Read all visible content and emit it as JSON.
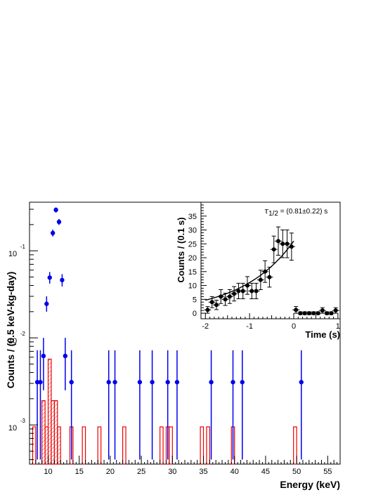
{
  "chart_data": [
    {
      "type": "scatter",
      "xlabel": "Energy (keV)",
      "ylabel": "Counts / (0.5 keV-kg-day)",
      "xlim": [
        7,
        57
      ],
      "ylog": true,
      "x_ticks": [
        {
          "v": 10,
          "label": "10"
        },
        {
          "v": 15,
          "label": "15"
        },
        {
          "v": 20,
          "label": "20"
        },
        {
          "v": 25,
          "label": "25"
        },
        {
          "v": 30,
          "label": "30"
        },
        {
          "v": 35,
          "label": "35"
        },
        {
          "v": 40,
          "label": "40"
        },
        {
          "v": 45,
          "label": "45"
        },
        {
          "v": 50,
          "label": "50"
        },
        {
          "v": 55,
          "label": "55"
        }
      ],
      "y_ticks": [
        {
          "exp": "-3",
          "base": "10"
        },
        {
          "exp": "-2",
          "base": "10"
        },
        {
          "exp": "-1",
          "base": "10"
        }
      ],
      "series": [
        {
          "kind": "points",
          "color": "#0000ee",
          "points": [
            {
              "x": 8.25,
              "y": 0.0031,
              "lo": 0.0004,
              "hi": 0.0072
            },
            {
              "x": 8.75,
              "y": 0.0031,
              "lo": 0.0004,
              "hi": 0.0072
            },
            {
              "x": 9.25,
              "y": 0.0062,
              "lo": 0.0025,
              "hi": 0.01
            },
            {
              "x": 9.75,
              "y": 0.0246,
              "lo": 0.02,
              "hi": 0.03
            },
            {
              "x": 10.25,
              "y": 0.0492,
              "lo": 0.042,
              "hi": 0.057
            },
            {
              "x": 10.75,
              "y": 0.16,
              "lo": 0.146,
              "hi": 0.175
            },
            {
              "x": 11.25,
              "y": 0.295,
              "lo": 0.275,
              "hi": 0.315
            },
            {
              "x": 11.75,
              "y": 0.215,
              "lo": 0.198,
              "hi": 0.232
            },
            {
              "x": 12.25,
              "y": 0.0461,
              "lo": 0.039,
              "hi": 0.054
            },
            {
              "x": 12.75,
              "y": 0.0062,
              "lo": 0.0025,
              "hi": 0.01
            },
            {
              "x": 13.75,
              "y": 0.0031,
              "lo": 0.0004,
              "hi": 0.0072
            },
            {
              "x": 19.75,
              "y": 0.0031,
              "lo": 0.0004,
              "hi": 0.0072
            },
            {
              "x": 20.75,
              "y": 0.0031,
              "lo": 0.0004,
              "hi": 0.0072
            },
            {
              "x": 24.75,
              "y": 0.0031,
              "lo": 0.0004,
              "hi": 0.0072
            },
            {
              "x": 26.75,
              "y": 0.0031,
              "lo": 0.0004,
              "hi": 0.0072
            },
            {
              "x": 29.25,
              "y": 0.0031,
              "lo": 0.0004,
              "hi": 0.0072
            },
            {
              "x": 30.75,
              "y": 0.0031,
              "lo": 0.0004,
              "hi": 0.0072
            },
            {
              "x": 36.25,
              "y": 0.0031,
              "lo": 0.0004,
              "hi": 0.0072
            },
            {
              "x": 39.75,
              "y": 0.0031,
              "lo": 0.0004,
              "hi": 0.0072
            },
            {
              "x": 41.25,
              "y": 0.0031,
              "lo": 0.0004,
              "hi": 0.0072
            },
            {
              "x": 50.75,
              "y": 0.0031,
              "lo": 0.0004,
              "hi": 0.0072
            }
          ]
        },
        {
          "kind": "histogram",
          "color": "#ee0000",
          "bins": [
            {
              "x0": 7.5,
              "x1": 8.0,
              "y": 0.00095
            },
            {
              "x0": 9.0,
              "x1": 9.5,
              "y": 0.0019
            },
            {
              "x0": 9.5,
              "x1": 10.0,
              "y": 0.00095
            },
            {
              "x0": 10.0,
              "x1": 10.5,
              "y": 0.0057
            },
            {
              "x0": 10.5,
              "x1": 11.0,
              "y": 0.0019
            },
            {
              "x0": 11.0,
              "x1": 11.5,
              "y": 0.0019
            },
            {
              "x0": 11.5,
              "x1": 12.0,
              "y": 0.00095
            },
            {
              "x0": 13.5,
              "x1": 14.0,
              "y": 0.00095
            },
            {
              "x0": 15.5,
              "x1": 16.0,
              "y": 0.00095
            },
            {
              "x0": 18.0,
              "x1": 18.5,
              "y": 0.00095
            },
            {
              "x0": 22.0,
              "x1": 22.5,
              "y": 0.00095
            },
            {
              "x0": 28.0,
              "x1": 28.5,
              "y": 0.00095
            },
            {
              "x0": 29.0,
              "x1": 29.5,
              "y": 0.00095
            },
            {
              "x0": 29.5,
              "x1": 30.0,
              "y": 0.00095
            },
            {
              "x0": 34.5,
              "x1": 35.0,
              "y": 0.00095
            },
            {
              "x0": 35.5,
              "x1": 36.0,
              "y": 0.00095
            },
            {
              "x0": 39.5,
              "x1": 40.0,
              "y": 0.00095
            },
            {
              "x0": 49.5,
              "x1": 50.0,
              "y": 0.00095
            }
          ]
        }
      ]
    },
    {
      "type": "scatter",
      "xlabel": "Time (s)",
      "ylabel": "Counts / (0.1 s)",
      "xlim": [
        -2.1,
        1.05
      ],
      "ylim": [
        -2,
        40
      ],
      "x_ticks": [
        {
          "v": -2,
          "label": "-2"
        },
        {
          "v": -1,
          "label": "-1"
        },
        {
          "v": 0,
          "label": "0"
        },
        {
          "v": 1,
          "label": "1"
        }
      ],
      "y_ticks": [
        {
          "v": 0,
          "label": "0"
        },
        {
          "v": 5,
          "label": "5"
        },
        {
          "v": 10,
          "label": "10"
        },
        {
          "v": 15,
          "label": "15"
        },
        {
          "v": 20,
          "label": "20"
        },
        {
          "v": 25,
          "label": "25"
        },
        {
          "v": 30,
          "label": "30"
        },
        {
          "v": 35,
          "label": "35"
        }
      ],
      "annotation": {
        "symbol": "τ",
        "subscript": "1/2",
        "text": " = (0.81±0.22) s"
      },
      "series": [
        {
          "kind": "points",
          "color": "#000000",
          "points": [
            {
              "x": -1.95,
              "y": 1.2,
              "e": 1.2
            },
            {
              "x": -1.85,
              "y": 4.0,
              "e": 2.0
            },
            {
              "x": -1.75,
              "y": 3.0,
              "e": 1.7
            },
            {
              "x": -1.65,
              "y": 6.0,
              "e": 2.5
            },
            {
              "x": -1.55,
              "y": 5.0,
              "e": 2.2
            },
            {
              "x": -1.45,
              "y": 6.0,
              "e": 2.5
            },
            {
              "x": -1.35,
              "y": 7.0,
              "e": 2.6
            },
            {
              "x": -1.25,
              "y": 8.0,
              "e": 2.8
            },
            {
              "x": -1.15,
              "y": 8.0,
              "e": 2.8
            },
            {
              "x": -1.05,
              "y": 10.0,
              "e": 3.2
            },
            {
              "x": -0.95,
              "y": 8.0,
              "e": 2.8
            },
            {
              "x": -0.85,
              "y": 8.0,
              "e": 2.8
            },
            {
              "x": -0.75,
              "y": 12.0,
              "e": 3.5
            },
            {
              "x": -0.65,
              "y": 15.0,
              "e": 3.9
            },
            {
              "x": -0.55,
              "y": 13.0,
              "e": 3.6
            },
            {
              "x": -0.45,
              "y": 23.0,
              "e": 4.8
            },
            {
              "x": -0.35,
              "y": 26.0,
              "e": 5.1
            },
            {
              "x": -0.25,
              "y": 25.0,
              "e": 5.0
            },
            {
              "x": -0.15,
              "y": 25.0,
              "e": 5.0
            },
            {
              "x": -0.05,
              "y": 24.0,
              "e": 4.9
            },
            {
              "x": 0.05,
              "y": 1.2,
              "e": 1.2
            },
            {
              "x": 0.15,
              "y": 0.0,
              "e": 0.5
            },
            {
              "x": 0.25,
              "y": 0.0,
              "e": 0.5
            },
            {
              "x": 0.35,
              "y": 0.0,
              "e": 0.5
            },
            {
              "x": 0.45,
              "y": 0.0,
              "e": 0.5
            },
            {
              "x": 0.55,
              "y": 0.0,
              "e": 0.5
            },
            {
              "x": 0.65,
              "y": 1.0,
              "e": 1.0
            },
            {
              "x": 0.75,
              "y": 0.0,
              "e": 0.5
            },
            {
              "x": 0.85,
              "y": 0.0,
              "e": 0.5
            },
            {
              "x": 0.95,
              "y": 1.0,
              "e": 1.0
            }
          ]
        },
        {
          "kind": "fit-curve",
          "color": "#000000",
          "fit": {
            "amplitude": 26.0,
            "half_life": 0.81,
            "x_from": -2.0,
            "x_to": 0.0
          }
        }
      ]
    }
  ]
}
